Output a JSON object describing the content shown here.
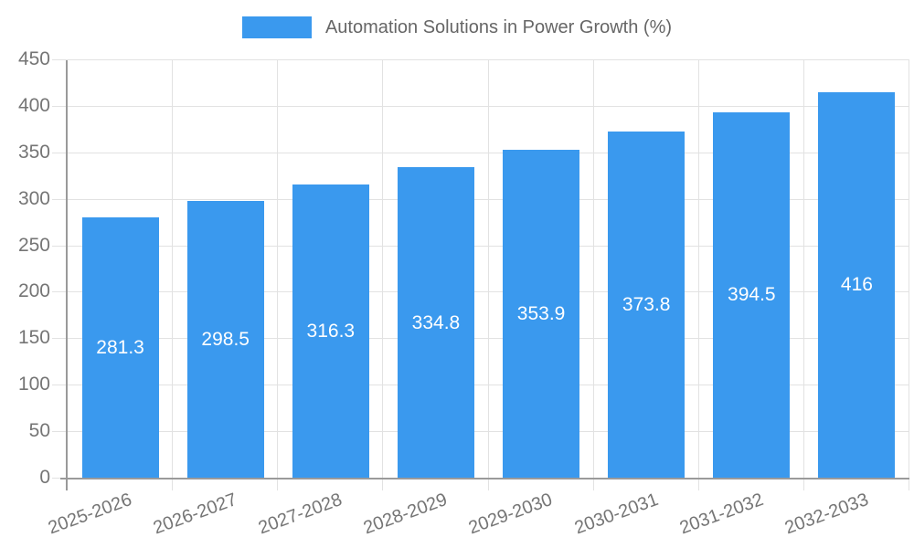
{
  "chart_data": {
    "type": "bar",
    "title": "Automation Solutions in Power Growth (%)",
    "categories": [
      "2025-2026",
      "2026-2027",
      "2027-2028",
      "2028-2029",
      "2029-2030",
      "2030-2031",
      "2031-2032",
      "2032-2033"
    ],
    "values": [
      281.3,
      298.5,
      316.3,
      334.8,
      353.9,
      373.8,
      394.5,
      416
    ],
    "value_labels": [
      "281.3",
      "298.5",
      "316.3",
      "334.8",
      "353.9",
      "373.8",
      "394.5",
      "416"
    ],
    "xlabel": "",
    "ylabel": "",
    "ylim": [
      0,
      450
    ],
    "ytick_step": 50,
    "y_ticks": [
      "0",
      "50",
      "100",
      "150",
      "200",
      "250",
      "300",
      "350",
      "400",
      "450"
    ],
    "grid": true,
    "legend_position": "top",
    "colors": {
      "bar": "#3A99EE",
      "grid": "#e2e2e2",
      "axis": "#9a9a9a",
      "tick_text": "#757575",
      "title_text": "#666666",
      "value_label": "#ffffff"
    }
  }
}
